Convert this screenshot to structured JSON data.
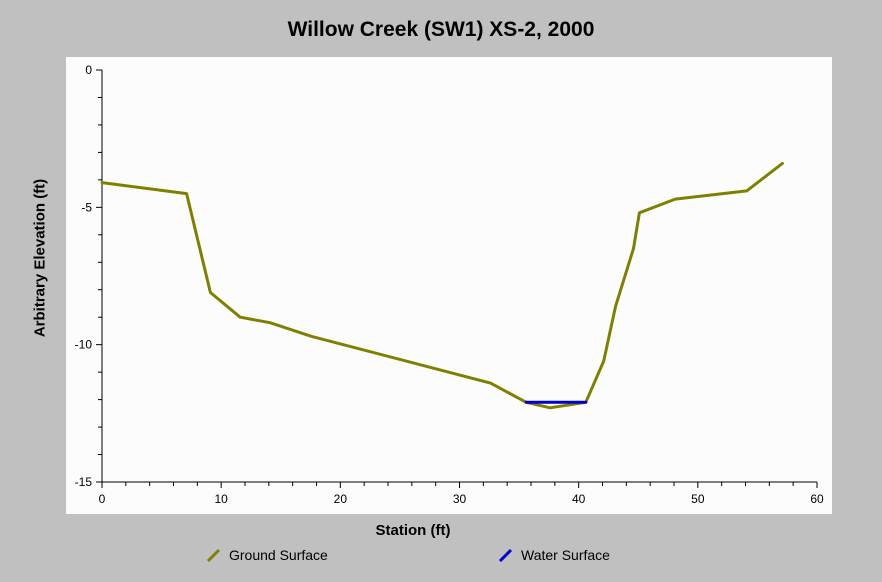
{
  "chart_data": {
    "type": "line",
    "title": "Willow Creek (SW1) XS-2, 2000",
    "xlabel": "Station (ft)",
    "ylabel": "Arbitrary Elevation (ft)",
    "xlim": [
      0,
      60
    ],
    "ylim": [
      -15,
      0
    ],
    "x_ticks": [
      "0",
      "10",
      "20",
      "30",
      "40",
      "50",
      "60"
    ],
    "y_ticks": [
      "0",
      "-5",
      "-10",
      "-15"
    ],
    "grid": false,
    "legend_position": "bottom",
    "series": [
      {
        "name": "Ground Surface",
        "color": "#808000",
        "points": [
          [
            0,
            -4.1
          ],
          [
            7.1,
            -4.5
          ],
          [
            9.1,
            -8.1
          ],
          [
            11.6,
            -9.0
          ],
          [
            14.1,
            -9.2
          ],
          [
            17.6,
            -9.7
          ],
          [
            32.6,
            -11.4
          ],
          [
            35.6,
            -12.1
          ],
          [
            37.6,
            -12.3
          ],
          [
            40.6,
            -12.1
          ],
          [
            42.1,
            -10.6
          ],
          [
            43.1,
            -8.6
          ],
          [
            44.6,
            -6.5
          ],
          [
            45.1,
            -5.2
          ],
          [
            48.1,
            -4.7
          ],
          [
            54.1,
            -4.4
          ],
          [
            57.1,
            -3.4
          ]
        ]
      },
      {
        "name": "Water Surface",
        "color": "#0000cc",
        "points": [
          [
            35.6,
            -12.1
          ],
          [
            40.6,
            -12.1
          ]
        ]
      }
    ]
  }
}
